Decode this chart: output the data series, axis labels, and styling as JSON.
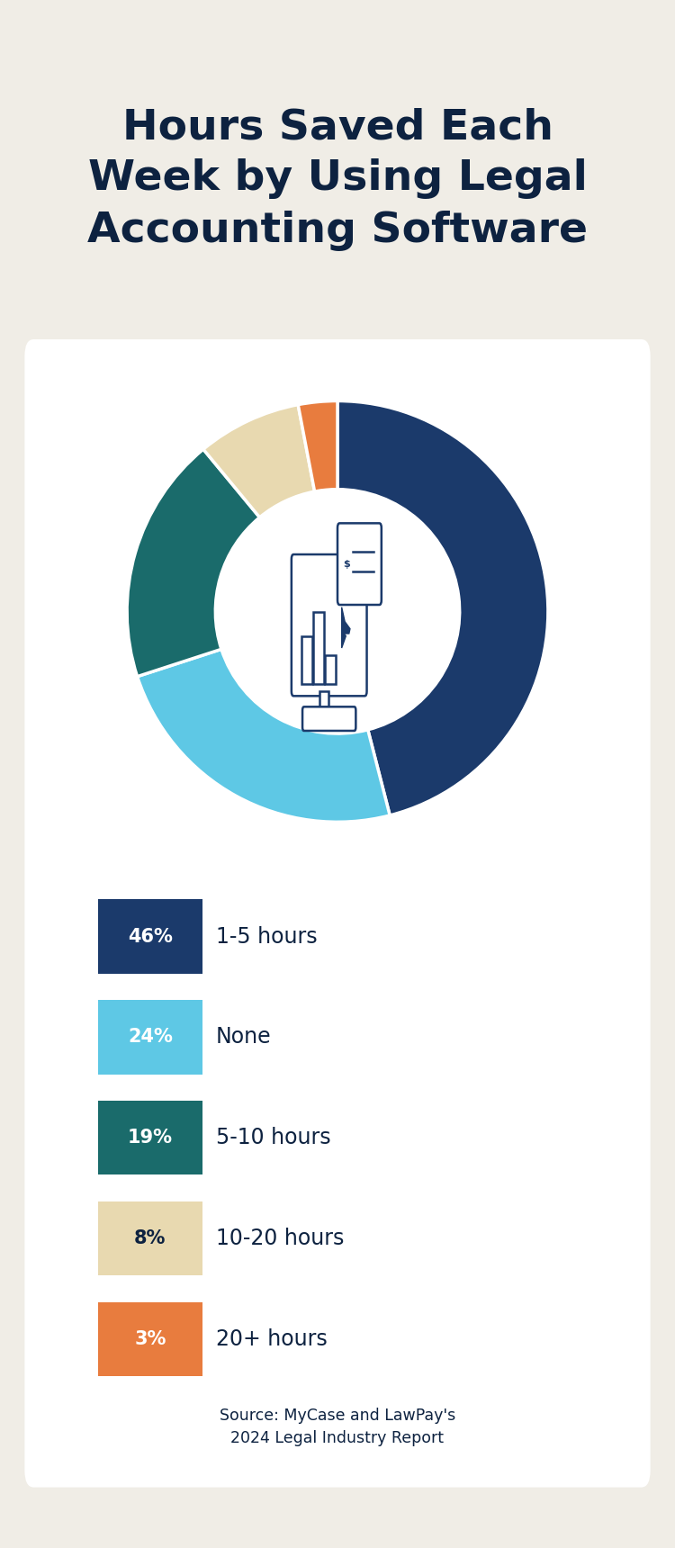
{
  "title": "Hours Saved Each\nWeek by Using Legal\nAccounting Software",
  "title_color": "#0d2240",
  "background_color": "#f0ede6",
  "card_color": "#ffffff",
  "slices": [
    46,
    24,
    19,
    8,
    3
  ],
  "labels": [
    "1-5 hours",
    "None",
    "5-10 hours",
    "10-20 hours",
    "20+ hours"
  ],
  "percentages": [
    "46%",
    "24%",
    "19%",
    "8%",
    "3%"
  ],
  "colors": [
    "#1b3a6b",
    "#5ec8e5",
    "#1a6b6b",
    "#e8d9b0",
    "#e87c3e"
  ],
  "source_text": "Source: MyCase and LawPay's\n2024 Legal Industry Report",
  "source_color": "#0d2240",
  "legend_label_color": "#0d2240",
  "icon_color": "#1b3a6b"
}
